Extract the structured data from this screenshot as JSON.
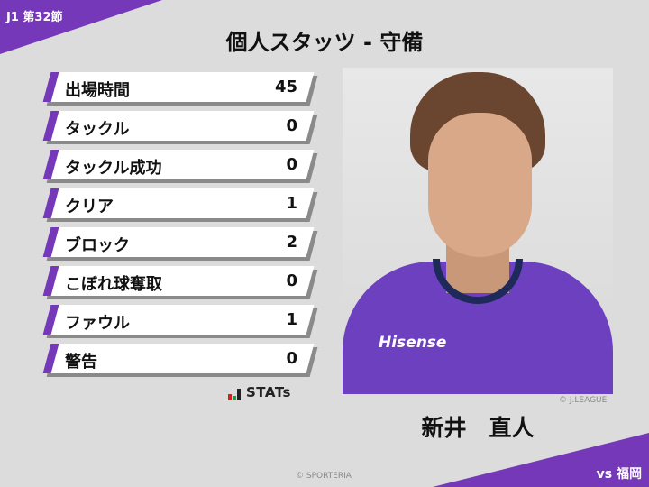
{
  "header": {
    "round": "J1 第32節",
    "title": "個人スタッツ - 守備",
    "opponent": "vs 福岡"
  },
  "stats": [
    {
      "label": "出場時間",
      "value": "45"
    },
    {
      "label": "タックル",
      "value": "0"
    },
    {
      "label": "タックル成功",
      "value": "0"
    },
    {
      "label": "クリア",
      "value": "1"
    },
    {
      "label": "ブロック",
      "value": "2"
    },
    {
      "label": "こぼれ球奪取",
      "value": "0"
    },
    {
      "label": "ファウル",
      "value": "1"
    },
    {
      "label": "警告",
      "value": "0"
    }
  ],
  "logo": {
    "text": "STATs"
  },
  "player": {
    "name": "新井　直人",
    "sponsor": "Hisense",
    "photo_credit": "© J.LEAGUE"
  },
  "footer": {
    "credit": "© SPORTERIA"
  },
  "colors": {
    "accent": "#7438b8",
    "background": "#dcdcdc"
  }
}
